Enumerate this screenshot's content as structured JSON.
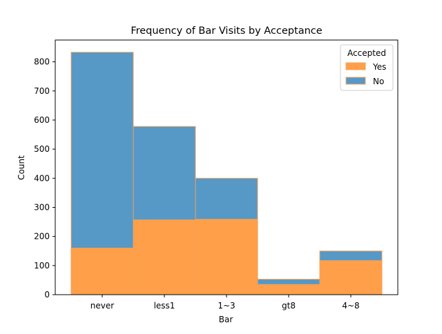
{
  "chart_data": {
    "type": "bar",
    "stacked": true,
    "title": "Frequency of Bar Visits by Acceptance",
    "xlabel": "Bar",
    "ylabel": "Count",
    "categories": [
      "never",
      "less1",
      "1~3",
      "gt8",
      "4~8"
    ],
    "series": [
      {
        "name": "Yes",
        "values": [
          160,
          257,
          259,
          35,
          117
        ]
      },
      {
        "name": "No",
        "values": [
          673,
          321,
          141,
          18,
          33
        ]
      }
    ],
    "ylim": [
      0,
      875
    ],
    "yticks": [
      0,
      100,
      200,
      300,
      400,
      500,
      600,
      700,
      800
    ],
    "legend": {
      "title": "Accepted",
      "placement": "top-right",
      "entries": [
        "Yes",
        "No"
      ]
    },
    "colors": {
      "Yes": "#ff9f4a",
      "No": "#5698c6",
      "edge": "#f4a259"
    },
    "grid": false
  }
}
